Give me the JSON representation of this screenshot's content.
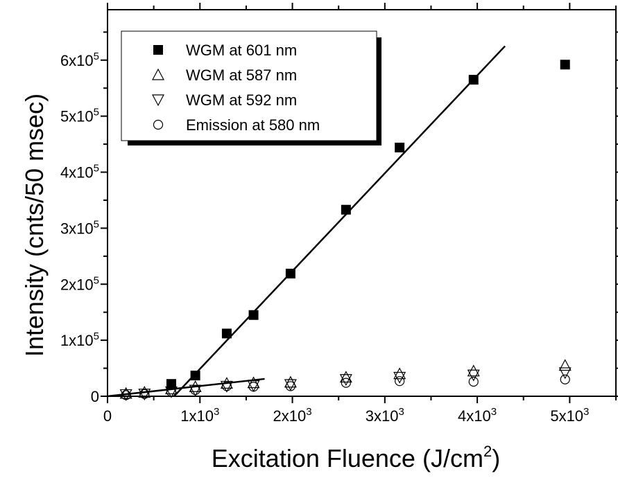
{
  "chart_data": {
    "type": "scatter",
    "title": "",
    "xlabel": "Excitation Fluence (J/cm",
    "xlabel_sup": "2",
    "xlabel_close": ")",
    "ylabel": "Intensity (cnts/50 msec)",
    "xlim": [
      0,
      5500
    ],
    "ylim": [
      0,
      690000
    ],
    "grid": false,
    "legend_position": "top-left",
    "x_ticks": [
      {
        "value": 0,
        "mantissa": "0",
        "exp": ""
      },
      {
        "value": 1000,
        "mantissa": "1x10",
        "exp": "3"
      },
      {
        "value": 2000,
        "mantissa": "2x10",
        "exp": "3"
      },
      {
        "value": 3000,
        "mantissa": "3x10",
        "exp": "3"
      },
      {
        "value": 4000,
        "mantissa": "4x10",
        "exp": "3"
      },
      {
        "value": 5000,
        "mantissa": "5x10",
        "exp": "3"
      }
    ],
    "y_ticks": [
      {
        "value": 0,
        "mantissa": "0",
        "exp": ""
      },
      {
        "value": 100000,
        "mantissa": "1x10",
        "exp": "5"
      },
      {
        "value": 200000,
        "mantissa": "2x10",
        "exp": "5"
      },
      {
        "value": 300000,
        "mantissa": "3x10",
        "exp": "5"
      },
      {
        "value": 400000,
        "mantissa": "4x10",
        "exp": "5"
      },
      {
        "value": 500000,
        "mantissa": "5x10",
        "exp": "5"
      },
      {
        "value": 600000,
        "mantissa": "6x10",
        "exp": "5"
      }
    ],
    "series": [
      {
        "name": "WGM at 601 nm",
        "marker": "filled-square",
        "x": [
          690,
          950,
          1290,
          1580,
          1980,
          2580,
          3160,
          3960,
          4950
        ],
        "y": [
          22000,
          37000,
          112000,
          145000,
          219000,
          333000,
          444000,
          565000,
          592000
        ]
      },
      {
        "name": "WGM at 587 nm",
        "marker": "open-triangle-up",
        "x": [
          200,
          400,
          690,
          950,
          1290,
          1580,
          1980,
          2580,
          3160,
          3960,
          4950
        ],
        "y": [
          5000,
          7000,
          13000,
          17000,
          23000,
          24000,
          25000,
          34000,
          40000,
          45000,
          55000
        ]
      },
      {
        "name": "WGM at 592 nm",
        "marker": "open-triangle-down",
        "x": [
          200,
          400,
          690,
          950,
          1290,
          1580,
          1980,
          2580,
          3160,
          3960,
          4950
        ],
        "y": [
          3000,
          4000,
          8000,
          11000,
          18000,
          19000,
          21000,
          30000,
          34000,
          38000,
          42000
        ]
      },
      {
        "name": "Emission at 580 nm",
        "marker": "open-circle",
        "x": [
          200,
          400,
          690,
          950,
          1290,
          1580,
          1980,
          2580,
          3160,
          3960,
          4950
        ],
        "y": [
          2000,
          4000,
          8000,
          11000,
          18000,
          17000,
          18000,
          24000,
          27000,
          26000,
          30000
        ]
      }
    ],
    "fit_lines": [
      {
        "x": [
          720,
          4300
        ],
        "y": [
          0,
          625000
        ]
      },
      {
        "x": [
          0,
          1700
        ],
        "y": [
          0,
          31000
        ]
      }
    ]
  }
}
